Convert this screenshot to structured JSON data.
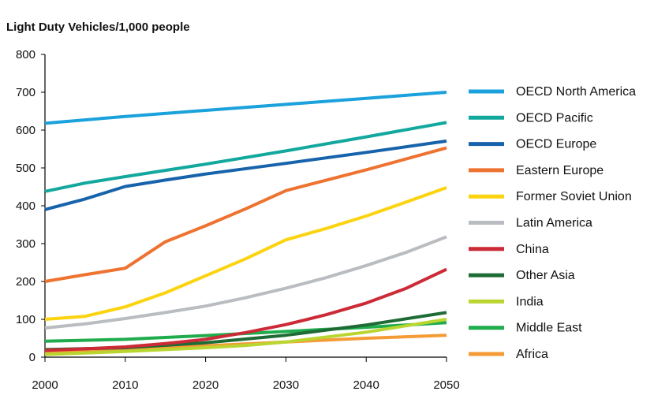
{
  "chart_data": {
    "type": "line",
    "title": "Light Duty Vehicles/1,000 people",
    "xlabel": "",
    "ylabel": "",
    "xlim": [
      2000,
      2050
    ],
    "ylim": [
      0,
      800
    ],
    "xticks": [
      2000,
      2010,
      2020,
      2030,
      2040,
      2050
    ],
    "yticks": [
      0,
      100,
      200,
      300,
      400,
      500,
      600,
      700,
      800
    ],
    "grid": false,
    "legend_position": "right",
    "series": [
      {
        "name": "OECD North America",
        "color": "#1ba1db",
        "x": [
          2000,
          2010,
          2020,
          2030,
          2040,
          2050
        ],
        "values": [
          618,
          636,
          652,
          668,
          684,
          700
        ]
      },
      {
        "name": "OECD Pacific",
        "color": "#13a89e",
        "x": [
          2000,
          2005,
          2010,
          2020,
          2030,
          2040,
          2050
        ],
        "values": [
          438,
          460,
          477,
          510,
          545,
          582,
          620
        ]
      },
      {
        "name": "OECD Europe",
        "color": "#1763ab",
        "x": [
          2000,
          2005,
          2010,
          2015,
          2020,
          2030,
          2040,
          2050
        ],
        "values": [
          390,
          418,
          451,
          468,
          484,
          512,
          541,
          571
        ]
      },
      {
        "name": "Eastern Europe",
        "color": "#ee7330",
        "x": [
          2000,
          2005,
          2010,
          2015,
          2020,
          2025,
          2030,
          2040,
          2050
        ],
        "values": [
          200,
          218,
          235,
          305,
          347,
          392,
          440,
          495,
          553
        ]
      },
      {
        "name": "Former Soviet Union",
        "color": "#fbd30f",
        "x": [
          2000,
          2005,
          2010,
          2015,
          2020,
          2025,
          2030,
          2035,
          2040,
          2045,
          2050
        ],
        "values": [
          100,
          108,
          133,
          170,
          215,
          260,
          310,
          340,
          373,
          410,
          448
        ]
      },
      {
        "name": "Latin America",
        "color": "#b9bcc0",
        "x": [
          2000,
          2005,
          2010,
          2015,
          2020,
          2025,
          2030,
          2035,
          2040,
          2045,
          2050
        ],
        "values": [
          77,
          88,
          102,
          118,
          135,
          157,
          182,
          210,
          242,
          277,
          318
        ]
      },
      {
        "name": "China",
        "color": "#cc2a36",
        "x": [
          2000,
          2005,
          2010,
          2015,
          2020,
          2025,
          2030,
          2035,
          2040,
          2045,
          2050
        ],
        "values": [
          18,
          22,
          27,
          36,
          47,
          65,
          86,
          112,
          143,
          182,
          232
        ]
      },
      {
        "name": "Other Asia",
        "color": "#1e6b35",
        "x": [
          2000,
          2010,
          2020,
          2030,
          2040,
          2050
        ],
        "values": [
          20,
          25,
          38,
          58,
          85,
          118
        ]
      },
      {
        "name": "India",
        "color": "#b9d530",
        "x": [
          2000,
          2010,
          2020,
          2025,
          2030,
          2040,
          2050
        ],
        "values": [
          7,
          15,
          25,
          31,
          40,
          66,
          100
        ]
      },
      {
        "name": "Middle East",
        "color": "#1fac4c",
        "x": [
          2000,
          2010,
          2020,
          2030,
          2040,
          2050
        ],
        "values": [
          42,
          47,
          57,
          68,
          79,
          91
        ]
      },
      {
        "name": "Africa",
        "color": "#f59b35",
        "x": [
          2000,
          2010,
          2020,
          2030,
          2040,
          2050
        ],
        "values": [
          15,
          20,
          30,
          40,
          50,
          58
        ]
      }
    ]
  }
}
